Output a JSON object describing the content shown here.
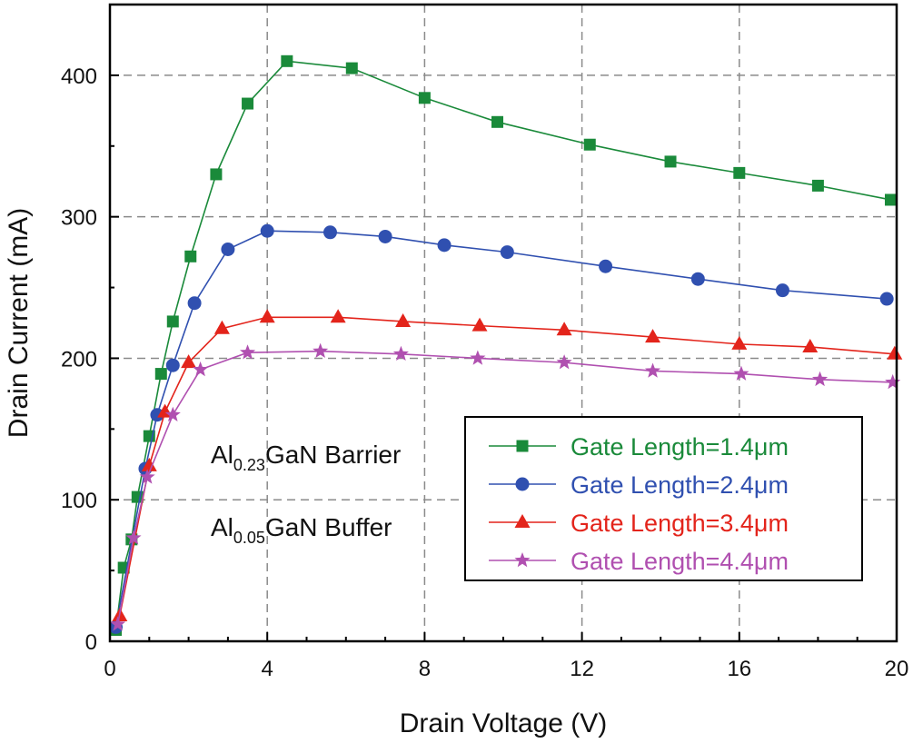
{
  "chart_data": {
    "type": "line",
    "xlabel": "Drain Voltage (V)",
    "ylabel": "Drain Current (mA)",
    "xlim": [
      0,
      20
    ],
    "ylim": [
      0,
      450
    ],
    "xticks": [
      0,
      4,
      8,
      12,
      16,
      20
    ],
    "yticks": [
      0,
      100,
      200,
      300,
      400
    ],
    "grid": true,
    "legend_position": "lower-right",
    "annotations": [
      {
        "main": "Al",
        "sub": "0.23",
        "rest": "GaN Barrier"
      },
      {
        "main": "Al",
        "sub": "0.05",
        "rest": "GaN Buffer"
      }
    ],
    "series": [
      {
        "name": "Gate Length=1.4μm",
        "color": "#1a8a3a",
        "marker": "square",
        "x": [
          0.15,
          0.35,
          0.55,
          0.7,
          1.0,
          1.3,
          1.6,
          2.05,
          2.7,
          3.5,
          4.5,
          6.15,
          8.0,
          9.85,
          12.2,
          14.25,
          16.0,
          18.0,
          19.85
        ],
        "y": [
          8,
          52,
          72,
          102,
          145,
          189,
          226,
          272,
          330,
          380,
          410,
          405,
          384,
          367,
          351,
          339,
          331,
          322,
          312
        ]
      },
      {
        "name": "Gate Length=2.4μm",
        "color": "#3050b0",
        "marker": "circle",
        "x": [
          0.15,
          0.9,
          1.2,
          1.6,
          2.15,
          3.0,
          4.0,
          5.6,
          7.0,
          8.5,
          10.1,
          12.6,
          14.95,
          17.1,
          19.75
        ],
        "y": [
          10,
          122,
          160,
          195,
          239,
          277,
          290,
          289,
          286,
          280,
          275,
          265,
          256,
          248,
          242
        ]
      },
      {
        "name": "Gate Length=3.4μm",
        "color": "#e3241b",
        "marker": "triangle",
        "x": [
          0.25,
          1.0,
          1.4,
          2.0,
          2.85,
          4.0,
          5.8,
          7.45,
          9.4,
          11.55,
          13.8,
          16.0,
          17.8,
          19.95
        ],
        "y": [
          18,
          124,
          162,
          197,
          221,
          229,
          229,
          226,
          223,
          220,
          215,
          210,
          208,
          203
        ]
      },
      {
        "name": "Gate Length=4.4μm",
        "color": "#b050b0",
        "marker": "star",
        "x": [
          0.2,
          0.6,
          0.95,
          1.6,
          2.3,
          3.5,
          5.35,
          7.4,
          9.35,
          11.55,
          13.8,
          16.05,
          18.05,
          19.9
        ],
        "y": [
          12,
          73,
          116,
          160,
          192,
          204,
          205,
          203,
          200,
          197,
          191,
          189,
          185,
          183
        ]
      }
    ]
  }
}
